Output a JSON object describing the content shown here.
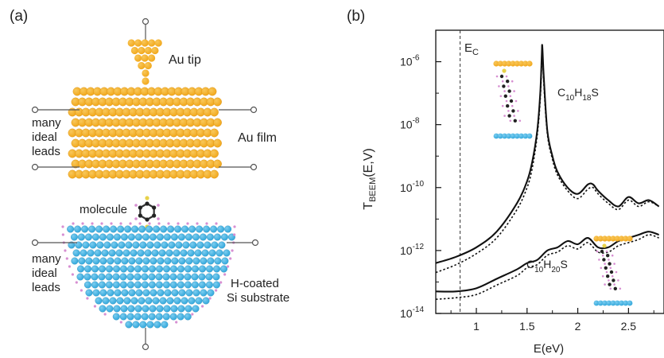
{
  "panel_a": {
    "label": "(a)",
    "tip_label": "Au tip",
    "film_label": "Au film",
    "leads_top": [
      "many",
      "ideal",
      "leads"
    ],
    "molecule_label": "molecule",
    "leads_bottom": [
      "many",
      "ideal",
      "leads"
    ],
    "substrate_label": [
      "H-coated",
      "Si substrate"
    ],
    "colors": {
      "gold": "#f2a91e",
      "gold_light": "#f8c75a",
      "silicon": "#35a9dc",
      "silicon_light": "#7ccdf0",
      "hydrogen": "#d78fd2",
      "carbon": "#222222",
      "sulfur": "#e7d24a"
    }
  },
  "panel_b": {
    "label": "(b)",
    "ec_label": "E",
    "ec_sub": "C",
    "label_18_parts": [
      "C",
      "10",
      "H",
      "18",
      "S"
    ],
    "label_20_parts": [
      "C",
      "10",
      "H",
      "20",
      "S"
    ],
    "ylabel_main": "T",
    "ylabel_sub": "BEEM",
    "ylabel_rest": "(E,V)",
    "xlabel": "E(eV)"
  },
  "chart_data": {
    "type": "line",
    "title": "",
    "xlabel": "E(eV)",
    "ylabel": "T_BEEM(E,V)",
    "x_range": [
      0.6,
      2.85
    ],
    "y_range_log10": [
      -14,
      -5
    ],
    "y_scale": "log",
    "x_ticks": [
      1,
      1.5,
      2,
      2.5
    ],
    "x_tick_labels": [
      "1",
      "1.5",
      "2",
      "2.5"
    ],
    "y_ticks_exp": [
      -14,
      -12,
      -10,
      -8,
      -6
    ],
    "y_tick_mantissa": "10",
    "y_tick_exponents": [
      "-14",
      "-12",
      "-10",
      "-8",
      "-6"
    ],
    "ec_line_x": 0.84,
    "series": [
      {
        "name": "C10H18S",
        "style": "solid",
        "x": [
          0.6,
          0.8,
          1.0,
          1.2,
          1.4,
          1.5,
          1.55,
          1.6,
          1.63,
          1.645,
          1.65,
          1.665,
          1.7,
          1.75,
          1.8,
          1.9,
          2.0,
          2.1,
          2.15,
          2.2,
          2.3,
          2.4,
          2.5,
          2.6,
          2.7,
          2.8
        ],
        "log10y": [
          -12.4,
          -12.2,
          -11.9,
          -11.4,
          -10.5,
          -9.8,
          -9.2,
          -8.2,
          -7.0,
          -5.8,
          -5.5,
          -6.5,
          -8.2,
          -9.0,
          -9.5,
          -10.0,
          -10.2,
          -9.9,
          -9.9,
          -10.1,
          -10.4,
          -10.6,
          -10.3,
          -10.5,
          -10.4,
          -10.6
        ]
      },
      {
        "name": "C10H18S dashed",
        "style": "dashed",
        "x": [
          0.6,
          0.8,
          1.0,
          1.2,
          1.4,
          1.5,
          1.55,
          1.6,
          1.63,
          1.645,
          1.65,
          1.665,
          1.7,
          1.75,
          1.8,
          1.9,
          2.0,
          2.1,
          2.15,
          2.2,
          2.3,
          2.4,
          2.5,
          2.6,
          2.7,
          2.8
        ],
        "log10y": [
          -12.7,
          -12.45,
          -12.1,
          -11.6,
          -10.7,
          -10.0,
          -9.4,
          -8.35,
          -7.2,
          -6.0,
          -5.6,
          -6.7,
          -8.3,
          -9.1,
          -9.6,
          -10.1,
          -10.35,
          -10.05,
          -10.0,
          -10.2,
          -10.5,
          -10.7,
          -10.4,
          -10.6,
          -10.45,
          -10.6
        ]
      },
      {
        "name": "C10H20S",
        "style": "solid",
        "x": [
          0.6,
          0.8,
          1.0,
          1.2,
          1.4,
          1.5,
          1.6,
          1.7,
          1.8,
          1.9,
          2.0,
          2.1,
          2.2,
          2.3,
          2.4,
          2.5,
          2.6,
          2.7,
          2.8
        ],
        "log10y": [
          -13.3,
          -13.3,
          -13.2,
          -12.9,
          -12.6,
          -12.4,
          -12.3,
          -12.0,
          -11.9,
          -11.7,
          -11.8,
          -11.6,
          -11.9,
          -11.9,
          -11.7,
          -11.6,
          -11.5,
          -11.4,
          -11.5
        ]
      },
      {
        "name": "C10H20S dashed",
        "style": "dashed",
        "x": [
          0.6,
          0.8,
          1.0,
          1.2,
          1.4,
          1.5,
          1.6,
          1.7,
          1.8,
          1.9,
          2.0,
          2.1,
          2.2,
          2.3,
          2.4,
          2.5,
          2.6,
          2.7,
          2.8
        ],
        "log10y": [
          -13.55,
          -13.5,
          -13.4,
          -13.1,
          -12.8,
          -12.55,
          -12.45,
          -12.15,
          -12.05,
          -11.85,
          -11.95,
          -11.75,
          -12.05,
          -12.05,
          -11.85,
          -11.75,
          -11.65,
          -11.5,
          -11.6
        ]
      }
    ]
  }
}
